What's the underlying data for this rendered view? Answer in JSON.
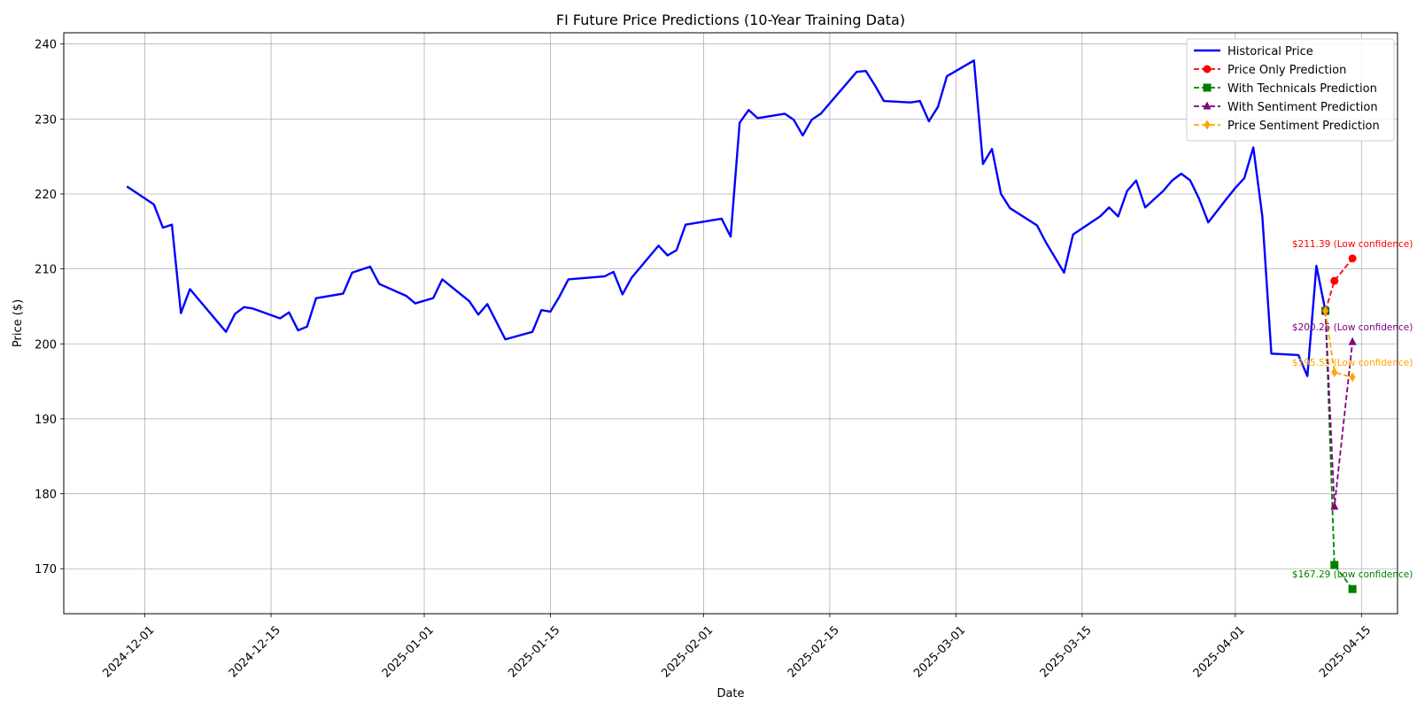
{
  "chart_data": {
    "type": "line",
    "title": "FI Future Price Predictions (10-Year Training Data)",
    "xlabel": "Date",
    "ylabel": "Price ($)",
    "x_type": "date",
    "xlim": [
      "2024-11-22",
      "2025-04-19"
    ],
    "ylim": [
      164,
      241.5
    ],
    "xticks": [
      "2024-12-01",
      "2024-12-15",
      "2025-01-01",
      "2025-01-15",
      "2025-02-01",
      "2025-02-15",
      "2025-03-01",
      "2025-03-15",
      "2025-04-01",
      "2025-04-15"
    ],
    "yticks": [
      170,
      180,
      190,
      200,
      210,
      220,
      230,
      240
    ],
    "grid": true,
    "legend_position": "top-right",
    "series": [
      {
        "name": "Historical Price",
        "color": "#0000ff",
        "style": "solid",
        "marker": "none",
        "points": [
          [
            "2024-11-29",
            221.0
          ],
          [
            "2024-12-02",
            218.6
          ],
          [
            "2024-12-03",
            215.5
          ],
          [
            "2024-12-04",
            215.9
          ],
          [
            "2024-12-05",
            204.1
          ],
          [
            "2024-12-06",
            207.3
          ],
          [
            "2024-12-10",
            201.6
          ],
          [
            "2024-12-11",
            204.0
          ],
          [
            "2024-12-12",
            204.9
          ],
          [
            "2024-12-13",
            204.7
          ],
          [
            "2024-12-16",
            203.4
          ],
          [
            "2024-12-17",
            204.2
          ],
          [
            "2024-12-18",
            201.8
          ],
          [
            "2024-12-19",
            202.3
          ],
          [
            "2024-12-20",
            206.1
          ],
          [
            "2024-12-23",
            206.7
          ],
          [
            "2024-12-24",
            209.5
          ],
          [
            "2024-12-26",
            210.3
          ],
          [
            "2024-12-27",
            208.0
          ],
          [
            "2024-12-30",
            206.4
          ],
          [
            "2024-12-31",
            205.4
          ],
          [
            "2025-01-02",
            206.1
          ],
          [
            "2025-01-03",
            208.6
          ],
          [
            "2025-01-06",
            205.7
          ],
          [
            "2025-01-07",
            203.9
          ],
          [
            "2025-01-08",
            205.3
          ],
          [
            "2025-01-10",
            200.6
          ],
          [
            "2025-01-13",
            201.6
          ],
          [
            "2025-01-14",
            204.5
          ],
          [
            "2025-01-15",
            204.3
          ],
          [
            "2025-01-16",
            206.3
          ],
          [
            "2025-01-17",
            208.6
          ],
          [
            "2025-01-21",
            209.0
          ],
          [
            "2025-01-22",
            209.6
          ],
          [
            "2025-01-23",
            206.6
          ],
          [
            "2025-01-24",
            208.8
          ],
          [
            "2025-01-27",
            213.1
          ],
          [
            "2025-01-28",
            211.8
          ],
          [
            "2025-01-29",
            212.5
          ],
          [
            "2025-01-30",
            215.9
          ],
          [
            "2025-02-03",
            216.7
          ],
          [
            "2025-02-04",
            214.3
          ],
          [
            "2025-02-05",
            229.5
          ],
          [
            "2025-02-06",
            231.2
          ],
          [
            "2025-02-07",
            230.1
          ],
          [
            "2025-02-10",
            230.7
          ],
          [
            "2025-02-11",
            229.9
          ],
          [
            "2025-02-12",
            227.8
          ],
          [
            "2025-02-13",
            229.9
          ],
          [
            "2025-02-14",
            230.7
          ],
          [
            "2025-02-18",
            236.3
          ],
          [
            "2025-02-19",
            236.4
          ],
          [
            "2025-02-20",
            234.5
          ],
          [
            "2025-02-21",
            232.4
          ],
          [
            "2025-02-24",
            232.2
          ],
          [
            "2025-02-25",
            232.4
          ],
          [
            "2025-02-26",
            229.7
          ],
          [
            "2025-02-27",
            231.6
          ],
          [
            "2025-02-28",
            235.7
          ],
          [
            "2025-03-03",
            237.8
          ],
          [
            "2025-03-04",
            224.0
          ],
          [
            "2025-03-05",
            226.0
          ],
          [
            "2025-03-06",
            220.0
          ],
          [
            "2025-03-07",
            218.1
          ],
          [
            "2025-03-10",
            215.8
          ],
          [
            "2025-03-11",
            213.5
          ],
          [
            "2025-03-13",
            209.5
          ],
          [
            "2025-03-14",
            214.6
          ],
          [
            "2025-03-17",
            217.0
          ],
          [
            "2025-03-18",
            218.2
          ],
          [
            "2025-03-19",
            217.0
          ],
          [
            "2025-03-20",
            220.4
          ],
          [
            "2025-03-21",
            221.8
          ],
          [
            "2025-03-22",
            218.2
          ],
          [
            "2025-03-24",
            220.4
          ],
          [
            "2025-03-25",
            221.8
          ],
          [
            "2025-03-26",
            222.7
          ],
          [
            "2025-03-27",
            221.8
          ],
          [
            "2025-03-28",
            219.3
          ],
          [
            "2025-03-29",
            216.2
          ],
          [
            "2025-03-31",
            219.3
          ],
          [
            "2025-04-01",
            220.8
          ],
          [
            "2025-04-02",
            222.1
          ],
          [
            "2025-04-03",
            226.2
          ],
          [
            "2025-04-04",
            217.0
          ],
          [
            "2025-04-05",
            198.7
          ],
          [
            "2025-04-08",
            198.5
          ],
          [
            "2025-04-09",
            195.7
          ],
          [
            "2025-04-10",
            210.4
          ],
          [
            "2025-04-11",
            204.4
          ]
        ]
      },
      {
        "name": "Price Only Prediction",
        "color": "#ff0000",
        "style": "dashed",
        "marker": "circle",
        "points": [
          [
            "2025-04-11",
            204.4
          ],
          [
            "2025-04-12",
            208.4
          ],
          [
            "2025-04-14",
            211.39
          ]
        ],
        "annotation": "$211.39 (Low confidence)"
      },
      {
        "name": "With Technicals Prediction",
        "color": "#008000",
        "style": "dashed",
        "marker": "square",
        "points": [
          [
            "2025-04-11",
            204.4
          ],
          [
            "2025-04-12",
            170.5
          ],
          [
            "2025-04-14",
            167.29
          ]
        ],
        "annotation": "$167.29 (Low confidence)"
      },
      {
        "name": "With Sentiment Prediction",
        "color": "#800080",
        "style": "dashed",
        "marker": "triangle",
        "points": [
          [
            "2025-04-11",
            204.4
          ],
          [
            "2025-04-12",
            178.3
          ],
          [
            "2025-04-14",
            200.25
          ]
        ],
        "annotation": "$200.25 (Low confidence)"
      },
      {
        "name": "Price Sentiment Prediction",
        "color": "#ffa500",
        "style": "dashed",
        "marker": "diamond",
        "points": [
          [
            "2025-04-11",
            204.4
          ],
          [
            "2025-04-12",
            196.2
          ],
          [
            "2025-04-14",
            195.55
          ]
        ],
        "annotation": "$195.55 (Low confidence)"
      }
    ]
  }
}
